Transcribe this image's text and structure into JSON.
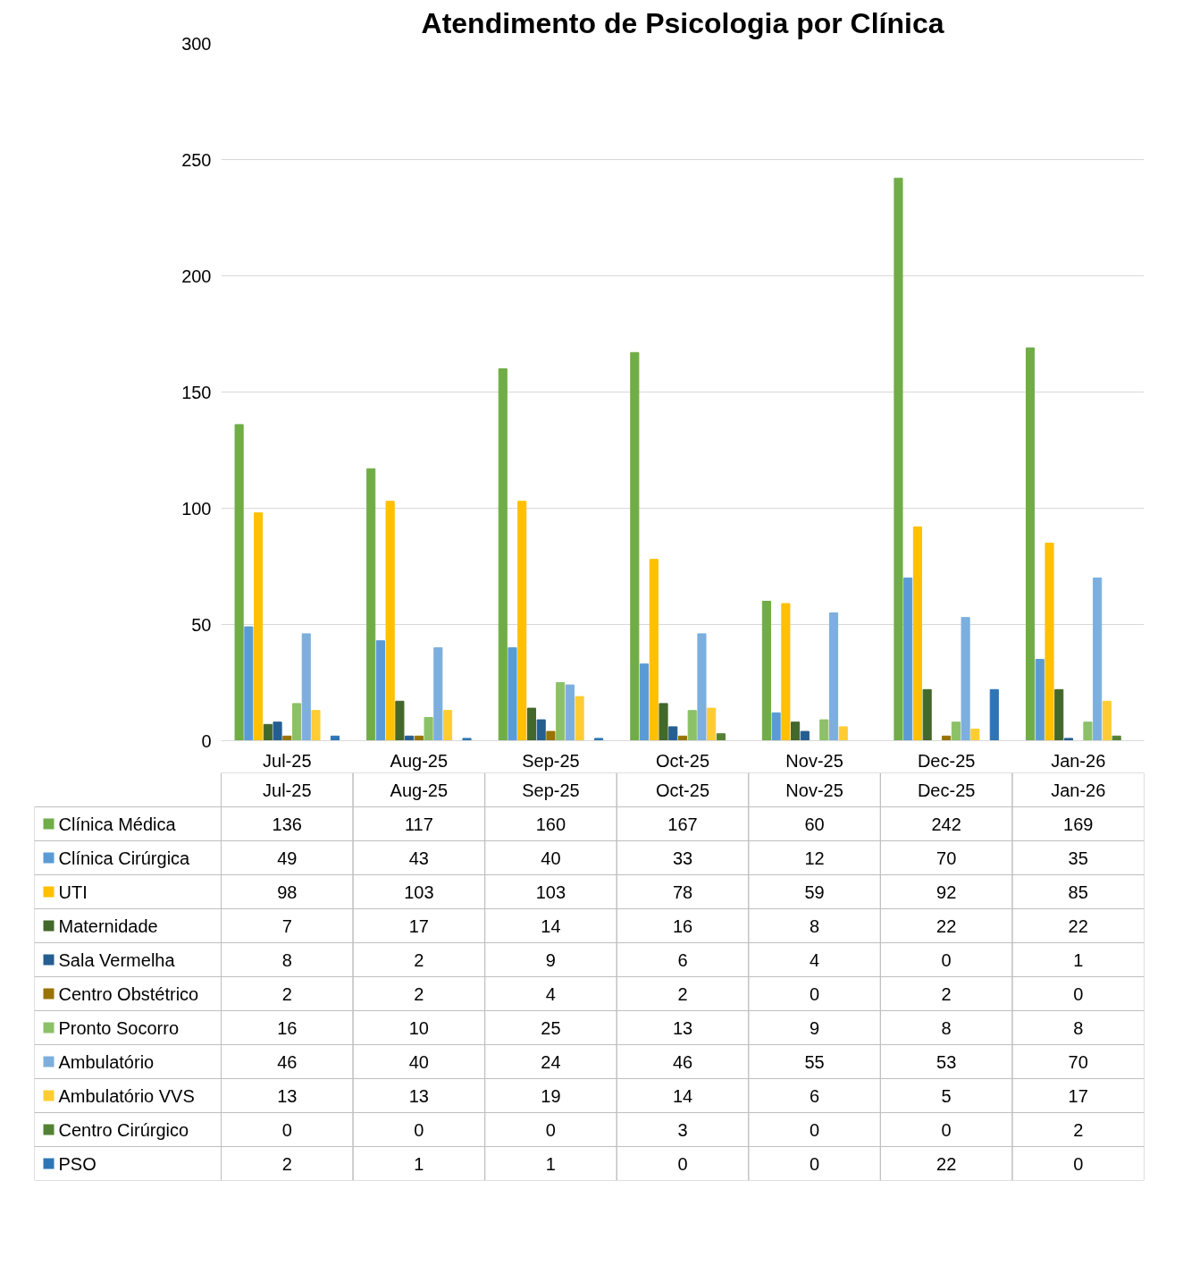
{
  "chart_data": {
    "type": "bar",
    "title": "Atendimento de Psicologia por Clínica",
    "categories": [
      "Jul-25",
      "Aug-25",
      "Sep-25",
      "Oct-25",
      "Nov-25",
      "Dec-25",
      "Jan-26"
    ],
    "series": [
      {
        "name": "Clínica Médica",
        "color": "#70ad47",
        "values": [
          136,
          117,
          160,
          167,
          60,
          242,
          169
        ]
      },
      {
        "name": "Clínica Cirúrgica",
        "color": "#5b9bd5",
        "values": [
          49,
          43,
          40,
          33,
          12,
          70,
          35
        ]
      },
      {
        "name": "UTI",
        "color": "#ffc000",
        "values": [
          98,
          103,
          103,
          78,
          59,
          92,
          85
        ]
      },
      {
        "name": "Maternidade",
        "color": "#43682b",
        "values": [
          7,
          17,
          14,
          16,
          8,
          22,
          22
        ]
      },
      {
        "name": "Sala Vermelha",
        "color": "#255e91",
        "values": [
          8,
          2,
          9,
          6,
          4,
          0,
          1
        ]
      },
      {
        "name": "Centro Obstétrico",
        "color": "#997300",
        "values": [
          2,
          2,
          4,
          2,
          0,
          2,
          0
        ]
      },
      {
        "name": "Pronto Socorro",
        "color": "#8cc168",
        "values": [
          16,
          10,
          25,
          13,
          9,
          8,
          8
        ]
      },
      {
        "name": "Ambulatório",
        "color": "#7cafdd",
        "values": [
          46,
          40,
          24,
          46,
          55,
          53,
          70
        ]
      },
      {
        "name": "Ambulatório VVS",
        "color": "#ffcd33",
        "values": [
          13,
          13,
          19,
          14,
          6,
          5,
          17
        ]
      },
      {
        "name": "Centro Cirúrgico",
        "color": "#548235",
        "values": [
          0,
          0,
          0,
          3,
          0,
          0,
          2
        ]
      },
      {
        "name": "PSO",
        "color": "#2e75b6",
        "values": [
          2,
          1,
          1,
          0,
          0,
          22,
          0
        ]
      }
    ],
    "ylim": [
      0,
      300
    ],
    "yticks": [
      0,
      50,
      100,
      150,
      200,
      250,
      300
    ],
    "grid": "y",
    "legend": "bottom",
    "data_labels": true
  }
}
